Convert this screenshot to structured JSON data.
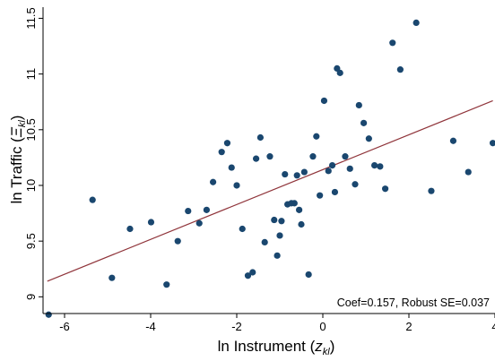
{
  "chart_data": {
    "type": "scatter",
    "title": "",
    "xlabel": {
      "text": "ln Instrument (",
      "var": "z",
      "sub": "kl",
      "close": ")"
    },
    "ylabel": {
      "text": "ln Traffic (",
      "var": "Ξ",
      "sub": "kl",
      "close": ")"
    },
    "xlim": [
      -6.5,
      4
    ],
    "ylim": [
      8.85,
      11.6
    ],
    "xticks": [
      -6,
      -4,
      -2,
      0,
      2,
      4
    ],
    "yticks": [
      9,
      9.5,
      10,
      10.5,
      11,
      11.5
    ],
    "xtick_labels": [
      "-6",
      "-4",
      "-2",
      "0",
      "2",
      "4"
    ],
    "ytick_labels": [
      "9",
      "9.5",
      "10",
      "10.5",
      "11",
      "11.5"
    ],
    "grid": false,
    "legend": "none",
    "annotation": "Coef=0.157, Robust SE=0.037",
    "colors": {
      "points": "#1a476f",
      "fit_line": "#90353b",
      "axis": "#000000"
    },
    "fit_line": {
      "x": [
        -6.4,
        3.95
      ],
      "y": [
        9.14,
        10.76
      ]
    },
    "points": [
      {
        "x": -6.37,
        "y": 8.84
      },
      {
        "x": -5.35,
        "y": 9.87
      },
      {
        "x": -4.9,
        "y": 9.17
      },
      {
        "x": -4.48,
        "y": 9.61
      },
      {
        "x": -3.99,
        "y": 9.67
      },
      {
        "x": -3.63,
        "y": 9.11
      },
      {
        "x": -3.37,
        "y": 9.5
      },
      {
        "x": -3.13,
        "y": 9.77
      },
      {
        "x": -2.87,
        "y": 9.66
      },
      {
        "x": -2.7,
        "y": 9.78
      },
      {
        "x": -2.55,
        "y": 10.03
      },
      {
        "x": -2.35,
        "y": 10.3
      },
      {
        "x": -2.22,
        "y": 10.38
      },
      {
        "x": -2.12,
        "y": 10.16
      },
      {
        "x": -2.0,
        "y": 10.0
      },
      {
        "x": -1.87,
        "y": 9.61
      },
      {
        "x": -1.74,
        "y": 9.19
      },
      {
        "x": -1.63,
        "y": 9.22
      },
      {
        "x": -1.55,
        "y": 10.24
      },
      {
        "x": -1.45,
        "y": 10.43
      },
      {
        "x": -1.35,
        "y": 9.49
      },
      {
        "x": -1.23,
        "y": 10.26
      },
      {
        "x": -1.13,
        "y": 9.69
      },
      {
        "x": -1.06,
        "y": 9.37
      },
      {
        "x": -1.0,
        "y": 9.55
      },
      {
        "x": -0.96,
        "y": 9.68
      },
      {
        "x": -0.88,
        "y": 10.1
      },
      {
        "x": -0.82,
        "y": 9.83
      },
      {
        "x": -0.73,
        "y": 9.84
      },
      {
        "x": -0.66,
        "y": 9.84
      },
      {
        "x": -0.6,
        "y": 10.09
      },
      {
        "x": -0.55,
        "y": 9.78
      },
      {
        "x": -0.5,
        "y": 9.65
      },
      {
        "x": -0.43,
        "y": 10.12
      },
      {
        "x": -0.33,
        "y": 9.2
      },
      {
        "x": -0.23,
        "y": 10.26
      },
      {
        "x": -0.15,
        "y": 10.44
      },
      {
        "x": -0.07,
        "y": 9.91
      },
      {
        "x": 0.03,
        "y": 10.76
      },
      {
        "x": 0.13,
        "y": 10.13
      },
      {
        "x": 0.22,
        "y": 10.18
      },
      {
        "x": 0.28,
        "y": 9.94
      },
      {
        "x": 0.33,
        "y": 11.05
      },
      {
        "x": 0.4,
        "y": 11.01
      },
      {
        "x": 0.52,
        "y": 10.26
      },
      {
        "x": 0.63,
        "y": 10.15
      },
      {
        "x": 0.75,
        "y": 10.01
      },
      {
        "x": 0.84,
        "y": 10.72
      },
      {
        "x": 0.95,
        "y": 10.56
      },
      {
        "x": 1.07,
        "y": 10.42
      },
      {
        "x": 1.2,
        "y": 10.18
      },
      {
        "x": 1.33,
        "y": 10.17
      },
      {
        "x": 1.45,
        "y": 9.97
      },
      {
        "x": 1.62,
        "y": 11.28
      },
      {
        "x": 1.8,
        "y": 11.04
      },
      {
        "x": 2.17,
        "y": 11.46
      },
      {
        "x": 2.52,
        "y": 9.95
      },
      {
        "x": 3.03,
        "y": 10.4
      },
      {
        "x": 3.38,
        "y": 10.12
      },
      {
        "x": 3.95,
        "y": 10.38
      }
    ]
  }
}
